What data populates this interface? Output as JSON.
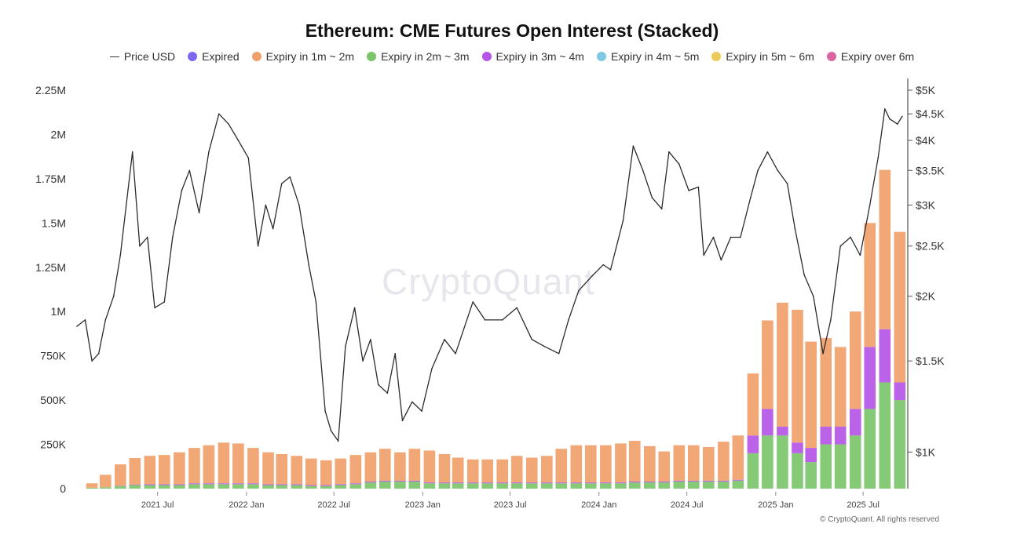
{
  "title": "Ethereum: CME Futures Open Interest (Stacked)",
  "watermark": "CryptoQuant",
  "footer": "© CryptoQuant. All rights reserved",
  "legend": [
    {
      "name": "Price USD",
      "type": "line",
      "color": "#333333"
    },
    {
      "name": "Expired",
      "type": "dot",
      "color": "#7b68ee"
    },
    {
      "name": "Expiry in 1m ~ 2m",
      "type": "dot",
      "color": "#f0a06a"
    },
    {
      "name": "Expiry in 2m ~ 3m",
      "type": "dot",
      "color": "#7cc46a"
    },
    {
      "name": "Expiry in 3m ~ 4m",
      "type": "dot",
      "color": "#b455e6"
    },
    {
      "name": "Expiry in 4m ~ 5m",
      "type": "dot",
      "color": "#7ec8e3"
    },
    {
      "name": "Expiry in 5m ~ 6m",
      "type": "dot",
      "color": "#ecc95a"
    },
    {
      "name": "Expiry over 6m",
      "type": "dot",
      "color": "#d9679d"
    }
  ],
  "chart_data": {
    "type": "bar",
    "stacked": true,
    "left_axis": {
      "range": [
        0,
        2250000
      ],
      "ticks": [
        0,
        250000,
        500000,
        750000,
        1000000,
        1250000,
        1500000,
        1750000,
        2000000,
        2250000
      ],
      "tick_labels": [
        "0",
        "250K",
        "500K",
        "750K",
        "1M",
        "1.25M",
        "1.5M",
        "1.75M",
        "2M",
        "2.25M"
      ]
    },
    "right_axis": {
      "scale": "log",
      "range": [
        850,
        5000
      ],
      "ticks": [
        1000,
        1500,
        2000,
        2500,
        3000,
        3500,
        4000,
        4500,
        5000
      ],
      "tick_labels": [
        "$1K",
        "$1.5K",
        "$2K",
        "$2.5K",
        "$3K",
        "$3.5K",
        "$4K",
        "$4.5K",
        "$5K"
      ]
    },
    "x_axis": {
      "range": [
        "2021-01-15",
        "2025-09-25"
      ],
      "ticks": [
        "2021-07-01",
        "2022-01-01",
        "2022-07-01",
        "2023-01-01",
        "2023-07-01",
        "2024-01-01",
        "2024-07-01",
        "2025-01-01",
        "2025-07-01"
      ],
      "tick_labels": [
        "2021 Jul",
        "2022 Jan",
        "2022 Jul",
        "2023 Jan",
        "2023 Jul",
        "2024 Jan",
        "2024 Jul",
        "2025 Jan",
        "2025 Jul"
      ]
    },
    "grid": false,
    "legend_position": "top",
    "open_interest": {
      "dates": [
        "2021-02",
        "2021-03",
        "2021-04",
        "2021-05",
        "2021-06",
        "2021-07",
        "2021-08",
        "2021-09",
        "2021-10",
        "2021-11",
        "2021-12",
        "2022-01",
        "2022-02",
        "2022-03",
        "2022-04",
        "2022-05",
        "2022-06",
        "2022-07",
        "2022-08",
        "2022-09",
        "2022-10",
        "2022-11",
        "2022-12",
        "2023-01",
        "2023-02",
        "2023-03",
        "2023-04",
        "2023-05",
        "2023-06",
        "2023-07",
        "2023-08",
        "2023-09",
        "2023-10",
        "2023-11",
        "2023-12",
        "2024-01",
        "2024-02",
        "2024-03",
        "2024-04",
        "2024-05",
        "2024-06",
        "2024-07",
        "2024-08",
        "2024-09",
        "2024-10",
        "2024-11",
        "2024-12",
        "2025-01",
        "2025-02",
        "2025-03",
        "2025-04",
        "2025-05",
        "2025-06",
        "2025-07",
        "2025-08",
        "2025-09"
      ],
      "series": [
        {
          "name": "Expired",
          "values": [
            0,
            0,
            0,
            0,
            0,
            0,
            0,
            0,
            0,
            0,
            0,
            0,
            0,
            0,
            0,
            0,
            0,
            0,
            0,
            0,
            0,
            0,
            0,
            0,
            0,
            0,
            0,
            0,
            0,
            0,
            0,
            0,
            0,
            0,
            0,
            0,
            0,
            0,
            0,
            0,
            0,
            0,
            0,
            0,
            0,
            0,
            0,
            0,
            0,
            0,
            0,
            0,
            0,
            0,
            0,
            0
          ]
        },
        {
          "name": "Expiry in 1m ~ 2m",
          "values": [
            25000,
            70000,
            120000,
            150000,
            160000,
            165000,
            180000,
            200000,
            215000,
            230000,
            225000,
            200000,
            180000,
            170000,
            160000,
            150000,
            140000,
            145000,
            160000,
            165000,
            180000,
            160000,
            180000,
            180000,
            160000,
            140000,
            130000,
            130000,
            130000,
            150000,
            140000,
            150000,
            190000,
            210000,
            210000,
            210000,
            220000,
            230000,
            200000,
            170000,
            200000,
            200000,
            190000,
            220000,
            250000,
            350000,
            500000,
            700000,
            750000,
            600000,
            500000,
            450000,
            550000,
            700000,
            900000,
            850000
          ]
        },
        {
          "name": "Expiry in 2m ~ 3m",
          "values": [
            5000,
            8000,
            15000,
            20000,
            20000,
            20000,
            20000,
            25000,
            25000,
            25000,
            25000,
            25000,
            20000,
            20000,
            20000,
            15000,
            15000,
            20000,
            25000,
            35000,
            40000,
            40000,
            40000,
            30000,
            30000,
            30000,
            30000,
            30000,
            30000,
            30000,
            30000,
            30000,
            30000,
            30000,
            30000,
            30000,
            30000,
            35000,
            35000,
            35000,
            40000,
            40000,
            40000,
            40000,
            45000,
            200000,
            300000,
            300000,
            200000,
            150000,
            250000,
            250000,
            300000,
            450000,
            600000,
            500000
          ]
        },
        {
          "name": "Expiry in 3m ~ 4m",
          "values": [
            0,
            0,
            2000,
            3000,
            5000,
            5000,
            5000,
            5000,
            5000,
            5000,
            5000,
            5000,
            5000,
            5000,
            5000,
            5000,
            5000,
            5000,
            5000,
            5000,
            5000,
            5000,
            5000,
            5000,
            5000,
            5000,
            5000,
            5000,
            5000,
            5000,
            5000,
            5000,
            5000,
            5000,
            5000,
            5000,
            5000,
            5000,
            5000,
            5000,
            5000,
            5000,
            5000,
            5000,
            5000,
            100000,
            150000,
            50000,
            60000,
            80000,
            100000,
            100000,
            150000,
            350000,
            300000,
            100000
          ]
        },
        {
          "name": "Expiry in 4m ~ 5m",
          "values": [
            0,
            0,
            0,
            0,
            0,
            0,
            0,
            0,
            0,
            0,
            0,
            0,
            0,
            0,
            0,
            0,
            0,
            0,
            0,
            0,
            0,
            0,
            0,
            0,
            0,
            0,
            0,
            0,
            0,
            0,
            0,
            0,
            0,
            0,
            0,
            0,
            0,
            0,
            0,
            0,
            0,
            0,
            0,
            0,
            0,
            0,
            0,
            0,
            0,
            0,
            0,
            0,
            0,
            0,
            0,
            0
          ]
        },
        {
          "name": "Expiry in 5m ~ 6m",
          "values": [
            0,
            0,
            0,
            0,
            0,
            0,
            0,
            0,
            0,
            0,
            0,
            0,
            0,
            0,
            0,
            0,
            0,
            0,
            0,
            0,
            0,
            0,
            0,
            0,
            0,
            0,
            0,
            0,
            0,
            0,
            0,
            0,
            0,
            0,
            0,
            0,
            0,
            0,
            0,
            0,
            0,
            0,
            0,
            0,
            0,
            0,
            0,
            0,
            0,
            0,
            0,
            0,
            0,
            0,
            0,
            0
          ]
        },
        {
          "name": "Expiry over 6m",
          "values": [
            0,
            0,
            0,
            0,
            0,
            0,
            0,
            0,
            0,
            0,
            0,
            0,
            0,
            0,
            0,
            0,
            0,
            0,
            0,
            0,
            0,
            0,
            0,
            0,
            0,
            0,
            0,
            0,
            0,
            0,
            0,
            0,
            0,
            0,
            0,
            0,
            0,
            0,
            0,
            0,
            0,
            0,
            0,
            0,
            0,
            0,
            0,
            0,
            0,
            0,
            0,
            0,
            0,
            0,
            0,
            0
          ]
        }
      ]
    },
    "price_usd": {
      "name": "Price USD",
      "dates": [
        "2021-01-15",
        "2021-02-01",
        "2021-02-15",
        "2021-03-01",
        "2021-03-15",
        "2021-04-01",
        "2021-04-15",
        "2021-05-10",
        "2021-05-25",
        "2021-06-10",
        "2021-06-25",
        "2021-07-15",
        "2021-08-01",
        "2021-08-20",
        "2021-09-05",
        "2021-09-25",
        "2021-10-15",
        "2021-11-05",
        "2021-11-25",
        "2021-12-15",
        "2022-01-05",
        "2022-01-25",
        "2022-02-10",
        "2022-02-25",
        "2022-03-15",
        "2022-04-01",
        "2022-04-20",
        "2022-05-10",
        "2022-05-25",
        "2022-06-13",
        "2022-06-25",
        "2022-07-10",
        "2022-07-25",
        "2022-08-13",
        "2022-08-30",
        "2022-09-15",
        "2022-10-01",
        "2022-10-20",
        "2022-11-05",
        "2022-11-20",
        "2022-12-10",
        "2022-12-30",
        "2023-01-20",
        "2023-02-15",
        "2023-03-10",
        "2023-04-15",
        "2023-05-10",
        "2023-06-15",
        "2023-07-15",
        "2023-08-15",
        "2023-09-10",
        "2023-10-10",
        "2023-10-30",
        "2023-11-20",
        "2023-12-20",
        "2024-01-10",
        "2024-01-25",
        "2024-02-20",
        "2024-03-12",
        "2024-04-01",
        "2024-04-20",
        "2024-05-10",
        "2024-05-25",
        "2024-06-15",
        "2024-07-05",
        "2024-07-25",
        "2024-08-05",
        "2024-08-25",
        "2024-09-10",
        "2024-09-30",
        "2024-10-20",
        "2024-11-10",
        "2024-11-25",
        "2024-12-15",
        "2025-01-05",
        "2025-01-25",
        "2025-02-10",
        "2025-03-01",
        "2025-03-20",
        "2025-04-09",
        "2025-04-25",
        "2025-05-15",
        "2025-06-05",
        "2025-06-25",
        "2025-07-15",
        "2025-08-01",
        "2025-08-15",
        "2025-08-25",
        "2025-09-10",
        "2025-09-20"
      ],
      "values": [
        1750,
        1800,
        1500,
        1550,
        1800,
        2000,
        2400,
        3800,
        2500,
        2600,
        1900,
        1950,
        2600,
        3200,
        3500,
        2900,
        3800,
        4500,
        4300,
        4000,
        3700,
        2500,
        3000,
        2700,
        3300,
        3400,
        3000,
        2300,
        1950,
        1200,
        1100,
        1050,
        1600,
        1900,
        1500,
        1650,
        1350,
        1300,
        1550,
        1150,
        1250,
        1200,
        1450,
        1650,
        1550,
        1950,
        1800,
        1800,
        1900,
        1650,
        1600,
        1550,
        1800,
        2050,
        2200,
        2300,
        2250,
        2800,
        3900,
        3500,
        3100,
        2950,
        3800,
        3600,
        3200,
        3250,
        2400,
        2600,
        2350,
        2600,
        2600,
        3100,
        3500,
        3800,
        3500,
        3300,
        2700,
        2200,
        2000,
        1550,
        1800,
        2500,
        2600,
        2400,
        3000,
        3700,
        4600,
        4400,
        4300,
        4450
      ]
    }
  }
}
